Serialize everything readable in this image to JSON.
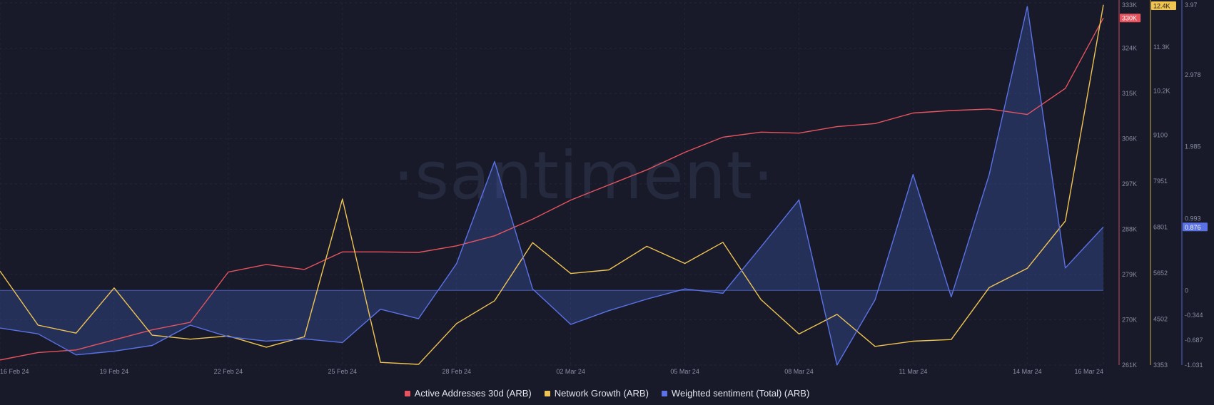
{
  "watermark": "·santiment·",
  "chart_data": {
    "type": "line",
    "x": [
      "16 Feb 24",
      "17 Feb 24",
      "18 Feb 24",
      "19 Feb 24",
      "20 Feb 24",
      "21 Feb 24",
      "22 Feb 24",
      "23 Feb 24",
      "24 Feb 24",
      "25 Feb 24",
      "26 Feb 24",
      "27 Feb 24",
      "28 Feb 24",
      "29 Feb 24",
      "01 Mar 24",
      "02 Mar 24",
      "03 Mar 24",
      "04 Mar 24",
      "05 Mar 24",
      "06 Mar 24",
      "07 Mar 24",
      "08 Mar 24",
      "09 Mar 24",
      "10 Mar 24",
      "11 Mar 24",
      "12 Mar 24",
      "13 Mar 24",
      "14 Mar 24",
      "15 Mar 24",
      "16 Mar 24"
    ],
    "x_tick_labels": [
      "16 Feb 24",
      "19 Feb 24",
      "22 Feb 24",
      "25 Feb 24",
      "28 Feb 24",
      "02 Mar 24",
      "05 Mar 24",
      "08 Mar 24",
      "11 Mar 24",
      "14 Mar 24",
      "16 Mar 24"
    ],
    "series": [
      {
        "name": "Active Addresses 30d (ARB)",
        "color": "#e5545f",
        "axis": "left",
        "values": [
          262000,
          263500,
          264000,
          266000,
          268000,
          269500,
          279500,
          281000,
          280000,
          283500,
          283500,
          283400,
          284700,
          286700,
          290000,
          293800,
          296800,
          299800,
          303300,
          306300,
          307300,
          307100,
          308400,
          309000,
          311100,
          311600,
          311900,
          310800,
          316000,
          330000
        ],
        "last_value_label": "330K"
      },
      {
        "name": "Network Growth (ARB)",
        "color": "#f0c453",
        "axis": "middle",
        "values": [
          5700,
          4350,
          4150,
          5280,
          4100,
          4000,
          4080,
          3800,
          4060,
          7500,
          3420,
          3370,
          4390,
          4960,
          6410,
          5640,
          5730,
          6320,
          5890,
          6420,
          4990,
          4130,
          4620,
          3820,
          3950,
          3990,
          5290,
          5770,
          6950,
          12350
        ],
        "last_value_label": "12.4K"
      },
      {
        "name": "Weighted sentiment (Total) (ARB)",
        "color": "#5a72e6",
        "axis": "right",
        "values": [
          -0.52,
          -0.6,
          -0.89,
          -0.84,
          -0.76,
          -0.48,
          -0.64,
          -0.7,
          -0.67,
          -0.72,
          -0.26,
          -0.39,
          0.37,
          1.78,
          0.02,
          -0.47,
          -0.28,
          -0.12,
          0.02,
          -0.04,
          0.6,
          1.25,
          -1.03,
          -0.13,
          1.6,
          -0.09,
          1.6,
          3.92,
          0.31,
          0.876
        ],
        "last_value_label": "0.876"
      }
    ],
    "axes": {
      "left": {
        "ylim": [
          261000,
          333000
        ],
        "tick_labels": [
          "261K",
          "270K",
          "279K",
          "288K",
          "297K",
          "306K",
          "315K",
          "324K",
          "333K"
        ]
      },
      "middle": {
        "ylim": [
          3353,
          12400
        ],
        "tick_labels": [
          "3353",
          "4502",
          "5652",
          "6801",
          "7951",
          "9100",
          "10.2K",
          "11.3K"
        ]
      },
      "right": {
        "ylim": [
          -1.031,
          3.97
        ],
        "tick_labels": [
          "-1.031",
          "-0.687",
          "-0.344",
          "0",
          "0.993",
          "1.985",
          "2.978",
          "3.97"
        ]
      }
    },
    "legend_position": "bottom-center",
    "grid": true
  }
}
